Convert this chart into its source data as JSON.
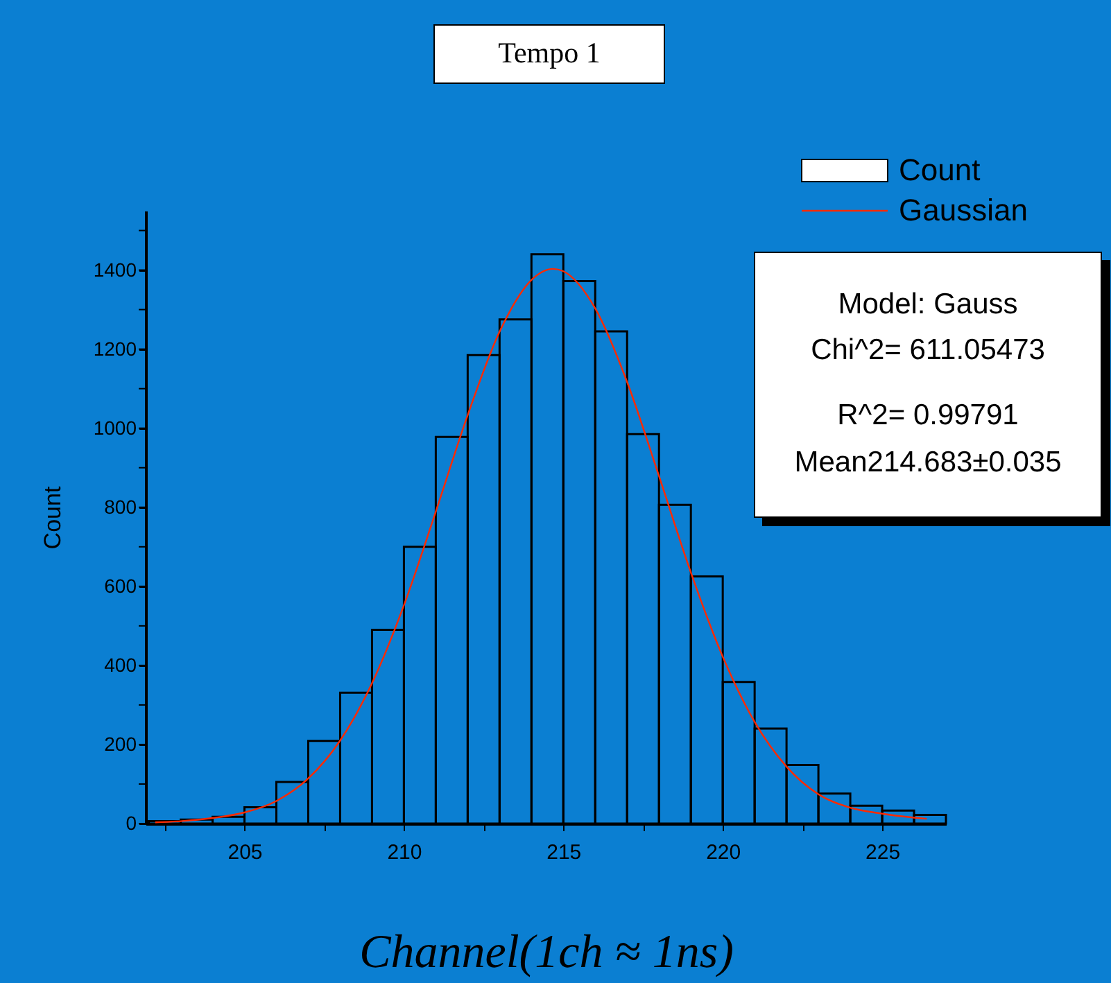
{
  "chart_data": {
    "type": "histogram",
    "title": "Tempo 1",
    "xlabel": "Channel(1ch ≈ 1ns)",
    "ylabel": "Count",
    "bins": [
      202,
      203,
      204,
      205,
      206,
      207,
      208,
      209,
      210,
      211,
      212,
      213,
      214,
      215,
      216,
      217,
      218,
      219,
      220,
      221,
      222,
      223,
      224,
      225,
      226,
      227
    ],
    "series": [
      {
        "name": "Count",
        "color": "#000000",
        "values": [
          6,
          10,
          17,
          41,
          105,
          209,
          331,
          490,
          700,
          978,
          1185,
          1275,
          1440,
          1372,
          1245,
          985,
          806,
          625,
          358,
          240,
          148,
          76,
          45,
          33,
          22
        ]
      },
      {
        "name": "Gaussian",
        "type": "line",
        "color": "#ff2a00",
        "x": [
          202.2,
          203,
          204,
          205,
          206,
          207,
          208,
          209,
          210,
          211,
          212,
          213,
          214,
          214.68,
          215,
          216,
          217,
          218,
          219,
          220,
          221,
          222,
          223,
          224,
          225,
          226,
          226.4
        ],
        "values": [
          3,
          6,
          14,
          28,
          57,
          114,
          210,
          355,
          552,
          789,
          1033,
          1244,
          1375,
          1403,
          1397,
          1303,
          1117,
          879,
          635,
          422,
          257,
          144,
          74,
          40,
          25,
          15,
          12
        ]
      }
    ],
    "xlim": [
      201.9,
      227
    ],
    "xticks": [
      {
        "value": 202.5,
        "label": null
      },
      205,
      {
        "value": 207.5,
        "label": null
      },
      210,
      {
        "value": 212.5,
        "label": null
      },
      215,
      {
        "value": 217.5,
        "label": null
      },
      220,
      {
        "value": 222.5,
        "label": null
      },
      225
    ],
    "ylim": [
      0,
      1550
    ],
    "yticks": [
      0,
      {
        "value": 100,
        "label": null
      },
      200,
      {
        "value": 300,
        "label": null
      },
      400,
      {
        "value": 500,
        "label": null
      },
      600,
      {
        "value": 700,
        "label": null
      },
      800,
      {
        "value": 900,
        "label": null
      },
      1000,
      {
        "value": 1100,
        "label": null
      },
      1200,
      {
        "value": 1300,
        "label": null
      },
      1400,
      {
        "value": 1500,
        "label": null
      }
    ],
    "annotations": [
      "Model: Gauss",
      "Chi^2=  611.05473",
      "R^2=  0.99791",
      "Mean214.683±0.035"
    ],
    "legend": "top right",
    "grid": false
  }
}
